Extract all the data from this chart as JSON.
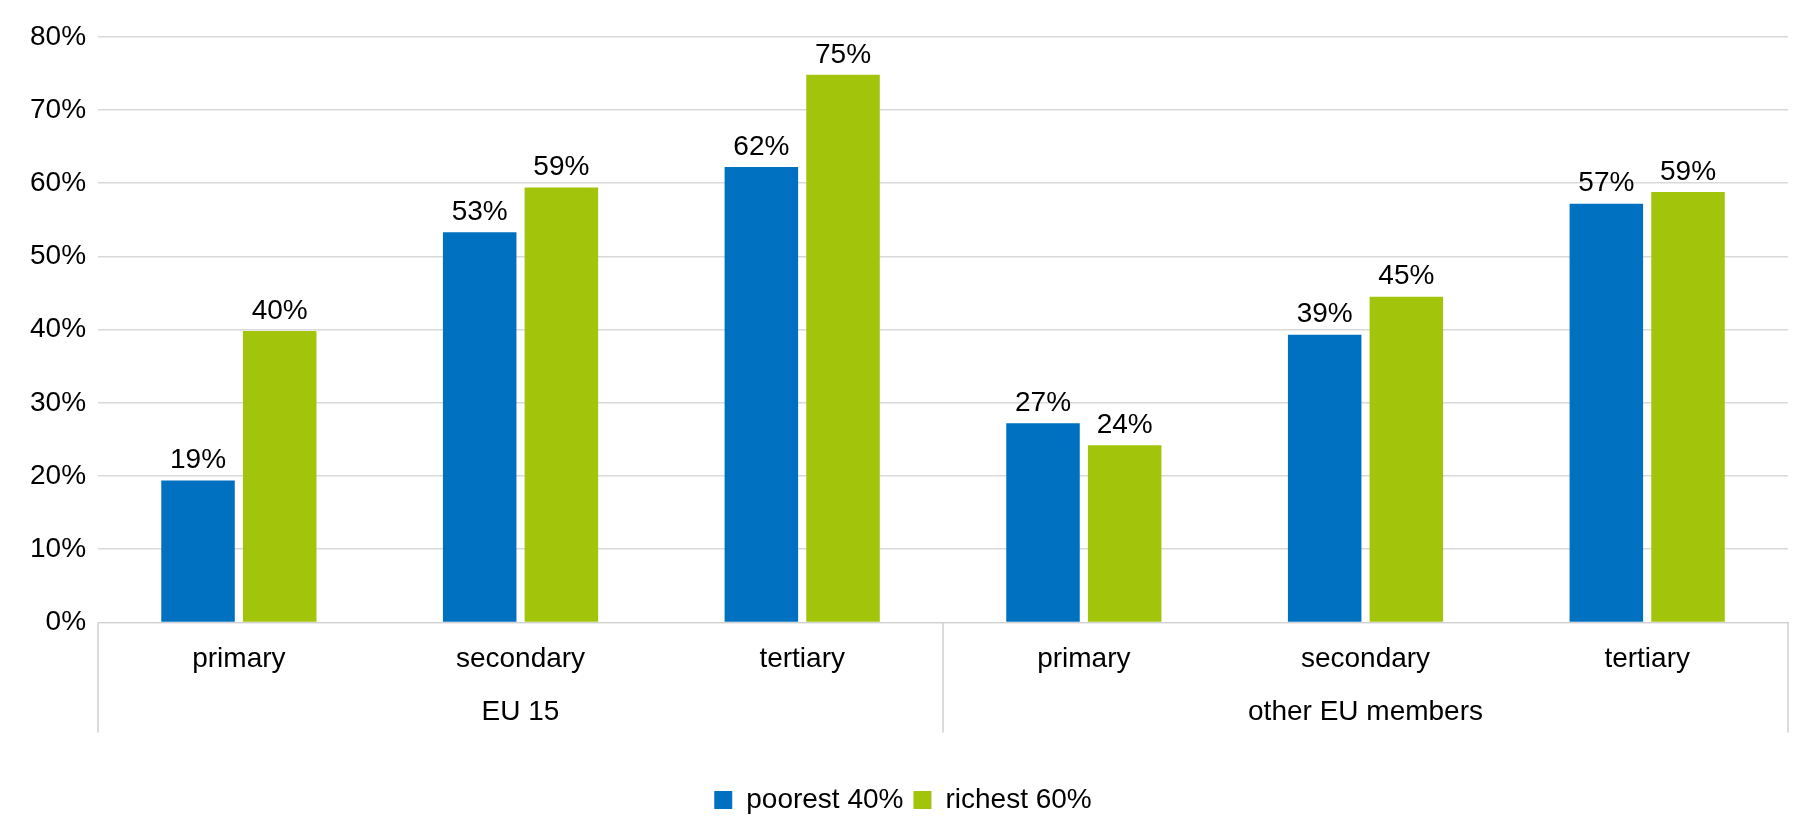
{
  "chart_data": {
    "type": "bar",
    "categories": [
      "primary",
      "secondary",
      "tertiary",
      "primary",
      "secondary",
      "tertiary"
    ],
    "annotations": [
      "EU 15",
      "other EU members"
    ],
    "series": [
      {
        "name": "poorest 40%",
        "color": "#0070c0",
        "values": [
          19.4,
          53.3,
          62.2,
          27.2,
          39.3,
          57.2
        ],
        "value_labels": [
          "19%",
          "53%",
          "62%",
          "27%",
          "39%",
          "57%"
        ]
      },
      {
        "name": "richest 60%",
        "color": "#a2c40a",
        "values": [
          39.8,
          59.4,
          74.8,
          24.2,
          44.5,
          58.8
        ],
        "value_labels": [
          "40%",
          "59%",
          "75%",
          "24%",
          "45%",
          "59%"
        ]
      }
    ],
    "ylim": [
      0,
      80
    ],
    "yticks": [
      {
        "value": 0,
        "label": "0%"
      },
      {
        "value": 10,
        "label": "10%"
      },
      {
        "value": 20,
        "label": "20%"
      },
      {
        "value": 30,
        "label": "30%"
      },
      {
        "value": 40,
        "label": "40%"
      },
      {
        "value": 50,
        "label": "50%"
      },
      {
        "value": 60,
        "label": "60%"
      },
      {
        "value": 70,
        "label": "70%"
      },
      {
        "value": 80,
        "label": "80%"
      }
    ],
    "grid": "y",
    "legend": "bottom"
  }
}
